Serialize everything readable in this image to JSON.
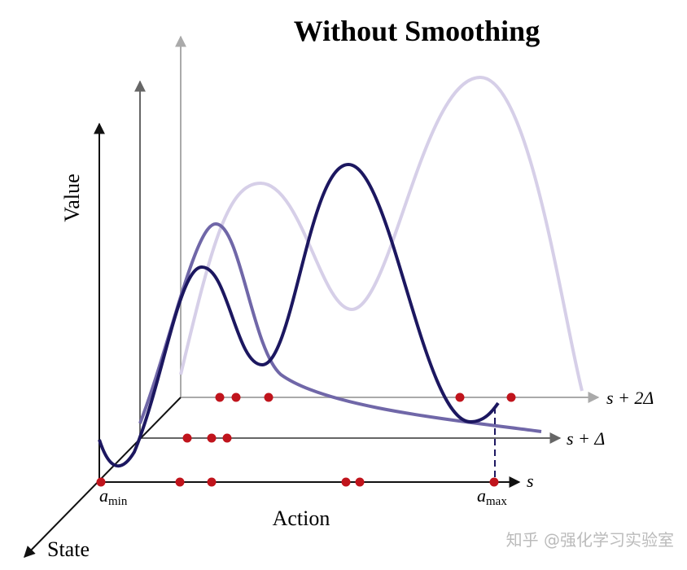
{
  "title": "Without Smoothing",
  "axes": {
    "value": "Value",
    "state": "State",
    "action": "Action"
  },
  "state_labels": {
    "s": "s",
    "s_plus_delta": "s + Δ",
    "s_plus_2delta": "s + 2Δ"
  },
  "action_labels": {
    "min": {
      "symbol": "a",
      "subscript": "min"
    },
    "max": {
      "symbol": "a",
      "subscript": "max"
    }
  },
  "watermark": "知乎 @强化学习实验室"
}
